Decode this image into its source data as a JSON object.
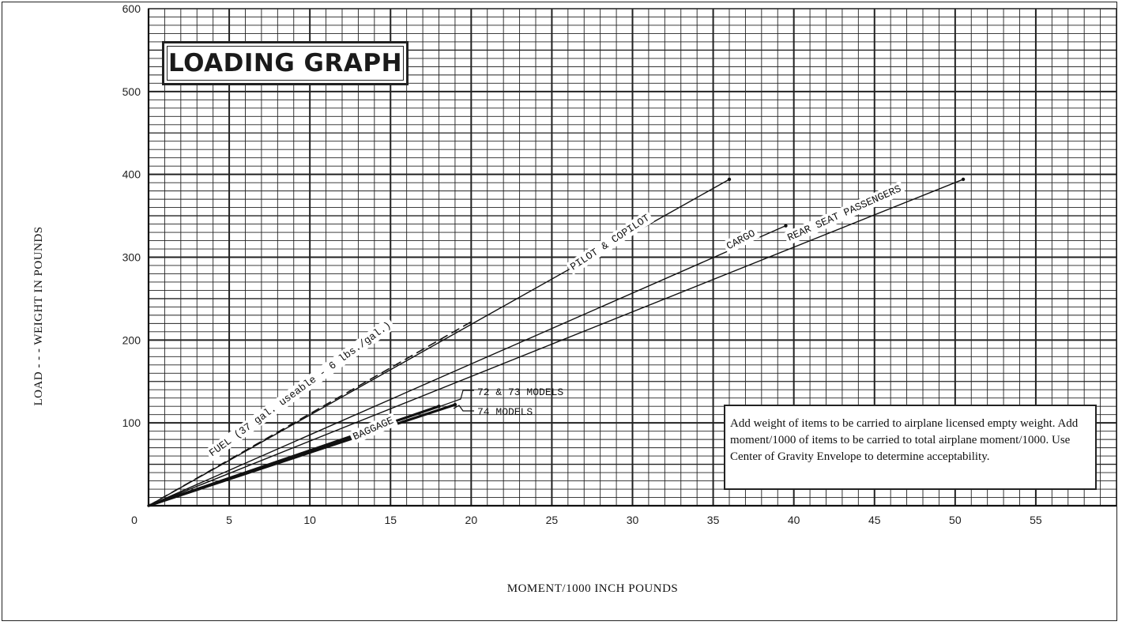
{
  "title": "LOADING GRAPH",
  "note": "Add weight of items to be carried to airplane licensed empty weight. Add moment/1000 of items to be carried to total airplane moment/1000. Use Center of Gravity Envelope to determine acceptability.",
  "chart_data": {
    "type": "line",
    "xlabel": "MOMENT/1000 INCH POUNDS",
    "ylabel": "LOAD - - - WEIGHT IN POUNDS",
    "xlim": [
      0,
      60
    ],
    "ylim": [
      0,
      600
    ],
    "x_ticks": [
      "0",
      "5",
      "10",
      "15",
      "20",
      "25",
      "30",
      "35",
      "40",
      "45",
      "50",
      "55"
    ],
    "y_ticks": [
      "100",
      "200",
      "300",
      "400",
      "500",
      "600"
    ],
    "grid": true,
    "series": [
      {
        "name": "PILOT & COPILOT",
        "points": [
          [
            0,
            0
          ],
          [
            36,
            394
          ]
        ],
        "style": "solid"
      },
      {
        "name": "CARGO",
        "points": [
          [
            0,
            0
          ],
          [
            39.5,
            338
          ]
        ],
        "style": "solid"
      },
      {
        "name": "REAR SEAT PASSENGERS",
        "points": [
          [
            0,
            0
          ],
          [
            50.5,
            394
          ]
        ],
        "style": "solid"
      },
      {
        "name": "FUEL (37 gal. useable - 6 lbs./gal.)",
        "points": [
          [
            0,
            0
          ],
          [
            20,
            222
          ]
        ],
        "style": "dashed"
      },
      {
        "name": "BAGGAGE",
        "points": [
          [
            0,
            0
          ],
          [
            18,
            120
          ]
        ],
        "style": "bold",
        "sublabel": "72 & 73 MODELS"
      },
      {
        "name": "BAGGAGE",
        "points": [
          [
            0,
            0
          ],
          [
            19,
            122
          ]
        ],
        "style": "bold",
        "sublabel": "74 MODELS"
      }
    ]
  }
}
